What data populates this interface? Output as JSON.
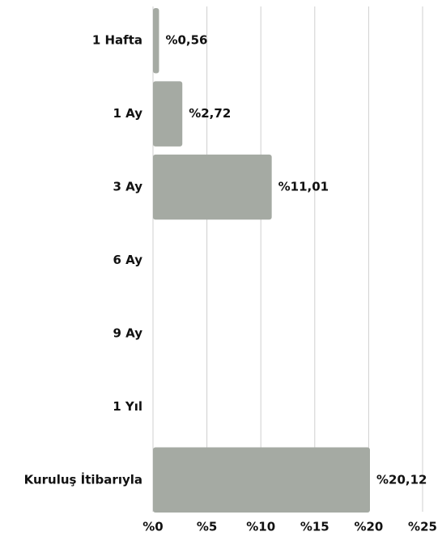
{
  "chart_data": {
    "type": "barh",
    "categories": [
      "1 Hafta",
      "1 Ay",
      "3 Ay",
      "6 Ay",
      "9 Ay",
      "1 Yıl",
      "Kuruluş İtibarıyla"
    ],
    "values": [
      0.56,
      2.72,
      11.01,
      null,
      null,
      null,
      20.12
    ],
    "value_labels": [
      "%0,56",
      "%2,72",
      "%11,01",
      null,
      null,
      null,
      "%20,12"
    ],
    "color": "#a5aaa3",
    "xlim": [
      0,
      25
    ],
    "xticks": [
      {
        "value": 0,
        "label": "%0"
      },
      {
        "value": 5,
        "label": "%5"
      },
      {
        "value": 10,
        "label": "%10"
      },
      {
        "value": 15,
        "label": "%15"
      },
      {
        "value": 20,
        "label": "%20"
      },
      {
        "value": 25,
        "label": "%25"
      }
    ],
    "grid": true
  }
}
